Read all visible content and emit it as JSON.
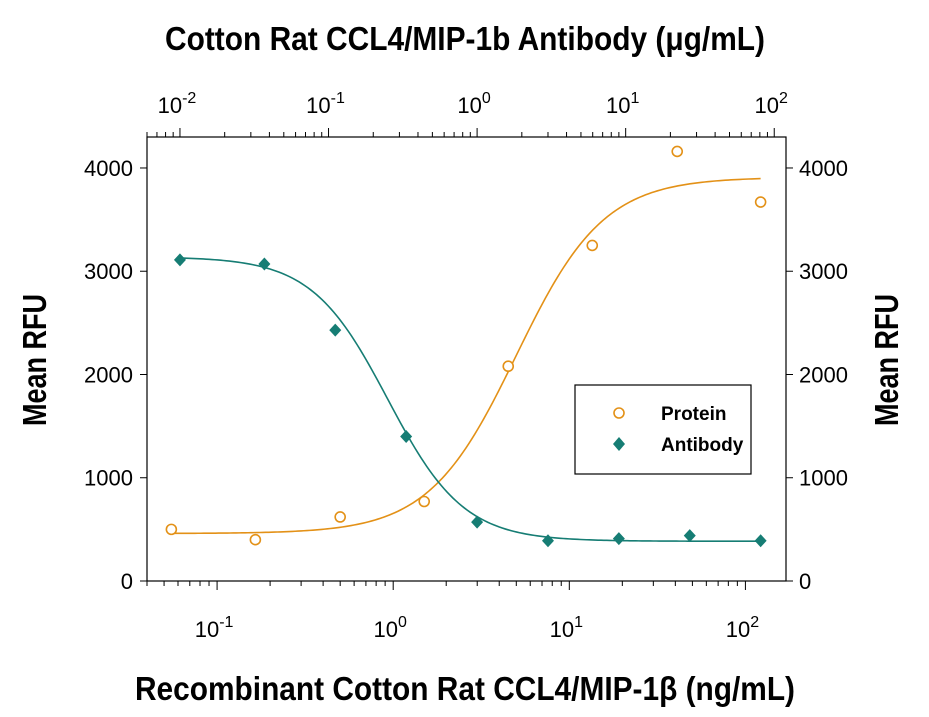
{
  "chart_data": {
    "type": "scatter",
    "title": "Cotton Rat CCL4/MIP-1b Antibody (μg/mL)",
    "xlabel": "Recombinant Cotton Rat CCL4/MIP-1β (ng/mL)",
    "ylabel_left": "Mean RFU",
    "ylabel_right": "Mean RFU",
    "x_scale": "log",
    "xlim": [
      0.04,
      170
    ],
    "x_ticks": [
      {
        "base": "10",
        "exp": "-1",
        "value": 0.1
      },
      {
        "base": "10",
        "exp": "0",
        "value": 1
      },
      {
        "base": "10",
        "exp": "1",
        "value": 10
      },
      {
        "base": "10",
        "exp": "2",
        "value": 100
      }
    ],
    "x2_scale": "log",
    "x2lim": [
      0.006,
      120
    ],
    "x2_ticks": [
      {
        "base": "10",
        "exp": "-2",
        "value": 0.01
      },
      {
        "base": "10",
        "exp": "-1",
        "value": 0.1
      },
      {
        "base": "10",
        "exp": "0",
        "value": 1
      },
      {
        "base": "10",
        "exp": "1",
        "value": 10
      },
      {
        "base": "10",
        "exp": "2",
        "value": 100
      }
    ],
    "ylim": [
      0,
      4300
    ],
    "y_ticks": [
      "0",
      "1000",
      "2000",
      "3000",
      "4000"
    ],
    "legend": {
      "position": "center-right"
    },
    "series": [
      {
        "name": "Protein",
        "axis": "bottom",
        "marker": "open-circle",
        "color": "#e39117",
        "x": [
          0.055,
          0.165,
          0.5,
          1.5,
          4.5,
          13.5,
          41,
          122
        ],
        "y": [
          500,
          400,
          620,
          770,
          2080,
          3250,
          4160,
          3670
        ],
        "fit": {
          "bottom": 460,
          "top": 3910,
          "ec50": 5.0,
          "hill": 1.75
        }
      },
      {
        "name": "Antibody",
        "axis": "top",
        "marker": "filled-diamond",
        "color": "#167d74",
        "x": [
          0.01,
          0.037,
          0.111,
          0.333,
          1.0,
          3.0,
          9.0,
          27.0,
          81.0
        ],
        "y": [
          3110,
          3070,
          2430,
          1400,
          570,
          390,
          410,
          440,
          390
        ],
        "fit": {
          "bottom": 385,
          "top": 3140,
          "ec50": 0.25,
          "hill": 1.7
        }
      }
    ]
  }
}
